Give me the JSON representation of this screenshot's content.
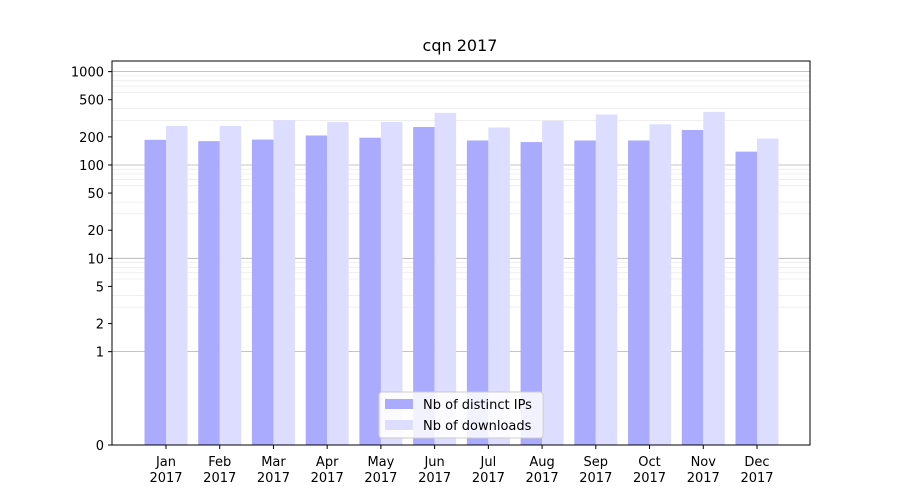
{
  "chart_data": {
    "type": "bar",
    "title": "cqn 2017",
    "xlabel": "",
    "ylabel": "",
    "yscale": "symlog",
    "ylim": [
      0,
      1300
    ],
    "grid": true,
    "legend_position": "bottom-center",
    "categories": [
      "Jan\n2017",
      "Feb\n2017",
      "Mar\n2017",
      "Apr\n2017",
      "May\n2017",
      "Jun\n2017",
      "Jul\n2017",
      "Aug\n2017",
      "Sep\n2017",
      "Oct\n2017",
      "Nov\n2017",
      "Dec\n2017"
    ],
    "y_ticks": [
      {
        "value": 0,
        "label": "0"
      },
      {
        "value": 1,
        "label": "1"
      },
      {
        "value": 2,
        "label": "2"
      },
      {
        "value": 5,
        "label": "5"
      },
      {
        "value": 10,
        "label": "10"
      },
      {
        "value": 20,
        "label": "20"
      },
      {
        "value": 50,
        "label": "50"
      },
      {
        "value": 100,
        "label": "100"
      },
      {
        "value": 200,
        "label": "200"
      },
      {
        "value": 500,
        "label": "500"
      },
      {
        "value": 1000,
        "label": "1000"
      }
    ],
    "series": [
      {
        "name": "Nb of distinct IPs",
        "color": "#aaaaff",
        "values": [
          186,
          180,
          187,
          207,
          196,
          255,
          183,
          176,
          183,
          183,
          237,
          139
        ]
      },
      {
        "name": "Nb of downloads",
        "color": "#ddddff",
        "values": [
          262,
          262,
          302,
          288,
          289,
          362,
          252,
          297,
          347,
          273,
          370,
          192
        ]
      }
    ]
  }
}
